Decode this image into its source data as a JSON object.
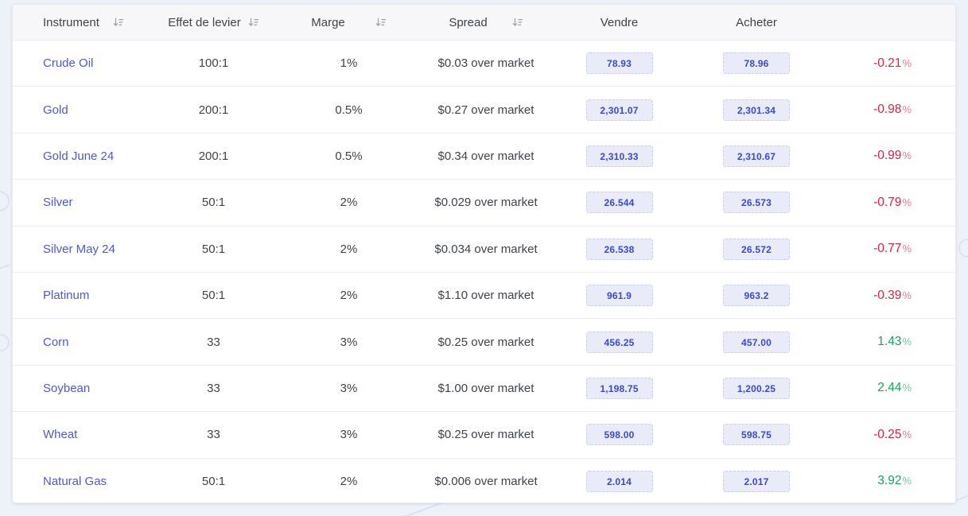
{
  "table": {
    "columns": [
      {
        "key": "instrument",
        "label": "Instrument",
        "sortable": true
      },
      {
        "key": "leverage",
        "label": "Effet de levier",
        "sortable": true
      },
      {
        "key": "margin",
        "label": "Marge",
        "sortable": true
      },
      {
        "key": "spread",
        "label": "Spread",
        "sortable": true
      },
      {
        "key": "sell",
        "label": "Vendre",
        "sortable": false
      },
      {
        "key": "buy",
        "label": "Acheter",
        "sortable": false
      },
      {
        "key": "change",
        "label": "",
        "sortable": false
      }
    ],
    "sort_icon": "sort-descending-icon",
    "rows": [
      {
        "instrument": "Crude Oil",
        "leverage": "100:1",
        "margin": "1%",
        "spread": "$0.03 over market",
        "sell": "78.93",
        "buy": "78.96",
        "change": "-0.21%",
        "direction": "down"
      },
      {
        "instrument": "Gold",
        "leverage": "200:1",
        "margin": "0.5%",
        "spread": "$0.27 over market",
        "sell": "2,301.07",
        "buy": "2,301.34",
        "change": "-0.98%",
        "direction": "down"
      },
      {
        "instrument": "Gold June 24",
        "leverage": "200:1",
        "margin": "0.5%",
        "spread": "$0.34 over market",
        "sell": "2,310.33",
        "buy": "2,310.67",
        "change": "-0.99%",
        "direction": "down"
      },
      {
        "instrument": "Silver",
        "leverage": "50:1",
        "margin": "2%",
        "spread": "$0.029 over market",
        "sell": "26.544",
        "buy": "26.573",
        "change": "-0.79%",
        "direction": "down"
      },
      {
        "instrument": "Silver May 24",
        "leverage": "50:1",
        "margin": "2%",
        "spread": "$0.034 over market",
        "sell": "26.538",
        "buy": "26.572",
        "change": "-0.77%",
        "direction": "down"
      },
      {
        "instrument": "Platinum",
        "leverage": "50:1",
        "margin": "2%",
        "spread": "$1.10 over market",
        "sell": "961.9",
        "buy": "963.2",
        "change": "-0.39%",
        "direction": "down"
      },
      {
        "instrument": "Corn",
        "leverage": "33",
        "margin": "3%",
        "spread": "$0.25 over market",
        "sell": "456.25",
        "buy": "457.00",
        "change": "1.43%",
        "direction": "up"
      },
      {
        "instrument": "Soybean",
        "leverage": "33",
        "margin": "3%",
        "spread": "$1.00 over market",
        "sell": "1,198.75",
        "buy": "1,200.25",
        "change": "2.44%",
        "direction": "up"
      },
      {
        "instrument": "Wheat",
        "leverage": "33",
        "margin": "3%",
        "spread": "$0.25 over market",
        "sell": "598.00",
        "buy": "598.75",
        "change": "-0.25%",
        "direction": "down"
      },
      {
        "instrument": "Natural Gas",
        "leverage": "50:1",
        "margin": "2%",
        "spread": "$0.006 over market",
        "sell": "2.014",
        "buy": "2.017",
        "change": "3.92%",
        "direction": "up"
      }
    ]
  },
  "colors": {
    "link_blue": "#4d58d8",
    "button_bg": "#e9ebf9",
    "button_text": "#3a49d2",
    "change_down": "#df2140",
    "change_up": "#16a35f",
    "header_bg": "#f7f7f9",
    "page_bg": "#edf1f8"
  }
}
